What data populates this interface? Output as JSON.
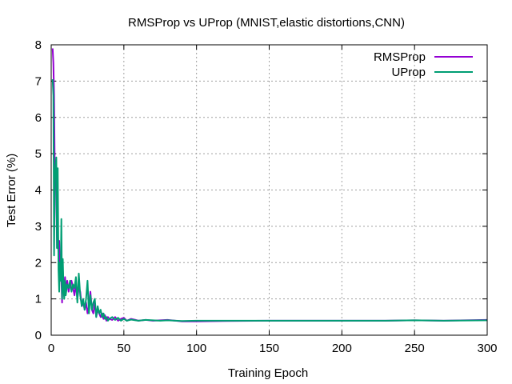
{
  "chart_data": {
    "type": "line",
    "title": "RMSProp vs UProp (MNIST,elastic distortions,CNN)",
    "xlabel": "Training Epoch",
    "ylabel": "Test Error (%)",
    "xlim": [
      0,
      300
    ],
    "ylim": [
      0,
      8
    ],
    "xticks": [
      "0",
      "50",
      "100",
      "150",
      "200",
      "250",
      "300"
    ],
    "yticks": [
      "0",
      "1",
      "2",
      "3",
      "4",
      "5",
      "6",
      "7",
      "8"
    ],
    "grid": true,
    "legend_position": "top-right",
    "series": [
      {
        "name": "RMSProp",
        "color": "#9400d3",
        "x": [
          1,
          1.5,
          2,
          2.5,
          3,
          3.5,
          4,
          4.5,
          5,
          5.5,
          6,
          6.5,
          7,
          7.5,
          8,
          8.5,
          9,
          9.5,
          10,
          11,
          12,
          13,
          14,
          15,
          16,
          17,
          18,
          19,
          20,
          21,
          22,
          23,
          24,
          25,
          26,
          27,
          28,
          29,
          30,
          31,
          32,
          33,
          34,
          35,
          36,
          37,
          38,
          39,
          40,
          42,
          44,
          46,
          48,
          50,
          52,
          55,
          58,
          60,
          65,
          70,
          75,
          80,
          90,
          100,
          120,
          150,
          180,
          200,
          230,
          250,
          270,
          300
        ],
        "values": [
          7.9,
          7.5,
          6.6,
          4.4,
          4.6,
          3.8,
          2.4,
          3.0,
          2.2,
          2.6,
          1.9,
          2.1,
          1.6,
          0.9,
          1.8,
          1.4,
          1.1,
          1.6,
          1.3,
          1.5,
          1.2,
          1.4,
          1.5,
          1.3,
          1.1,
          1.4,
          1.0,
          1.3,
          1.2,
          0.8,
          0.9,
          0.7,
          0.9,
          0.6,
          0.8,
          1.2,
          0.7,
          0.6,
          0.9,
          0.5,
          0.7,
          0.6,
          0.5,
          0.6,
          0.45,
          0.55,
          0.4,
          0.5,
          0.45,
          0.42,
          0.5,
          0.4,
          0.45,
          0.48,
          0.4,
          0.45,
          0.42,
          0.4,
          0.42,
          0.4,
          0.41,
          0.42,
          0.38,
          0.38,
          0.39,
          0.4,
          0.4,
          0.4,
          0.4,
          0.41,
          0.4,
          0.42
        ]
      },
      {
        "name": "UProp",
        "color": "#009e73",
        "x": [
          1,
          1.5,
          2,
          2.5,
          3,
          3.5,
          4,
          4.5,
          5,
          5.5,
          6,
          6.5,
          7,
          7.5,
          8,
          8.5,
          9,
          9.5,
          10,
          11,
          12,
          13,
          14,
          15,
          16,
          17,
          18,
          19,
          20,
          21,
          22,
          23,
          24,
          25,
          26,
          27,
          28,
          29,
          30,
          31,
          32,
          33,
          34,
          35,
          36,
          37,
          38,
          39,
          40,
          42,
          44,
          46,
          48,
          50,
          52,
          55,
          58,
          60,
          65,
          70,
          75,
          80,
          90,
          100,
          120,
          150,
          180,
          200,
          230,
          250,
          270,
          300
        ],
        "values": [
          7.05,
          6.6,
          2.2,
          4.3,
          4.7,
          4.9,
          2.4,
          4.6,
          1.8,
          1.2,
          2.0,
          1.5,
          3.2,
          1.0,
          2.1,
          1.3,
          1.0,
          1.5,
          1.1,
          1.4,
          1.3,
          1.5,
          1.2,
          1.4,
          1.3,
          1.6,
          0.9,
          1.7,
          1.1,
          0.8,
          1.0,
          0.7,
          1.0,
          1.5,
          0.6,
          1.1,
          0.7,
          0.9,
          1.0,
          0.5,
          0.8,
          0.6,
          0.7,
          0.5,
          0.6,
          0.45,
          0.5,
          0.4,
          0.45,
          0.5,
          0.42,
          0.48,
          0.4,
          0.45,
          0.4,
          0.43,
          0.41,
          0.4,
          0.42,
          0.41,
          0.4,
          0.41,
          0.39,
          0.4,
          0.4,
          0.4,
          0.4,
          0.4,
          0.4,
          0.41,
          0.4,
          0.41
        ]
      }
    ]
  }
}
